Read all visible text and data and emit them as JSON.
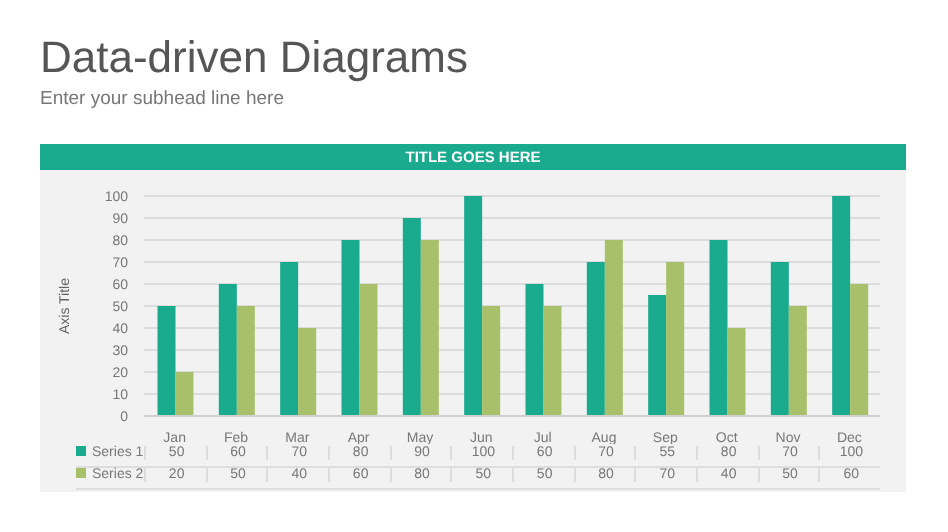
{
  "chart_data": {
    "type": "bar",
    "title": "Data-driven Diagrams",
    "subtitle": "Enter your subhead line here",
    "annotations": [
      "TITLE GOES HERE"
    ],
    "ylabel": "Axis Title",
    "categories": [
      "Jan",
      "Feb",
      "Mar",
      "Apr",
      "May",
      "Jun",
      "Jul",
      "Aug",
      "Sep",
      "Oct",
      "Nov",
      "Dec"
    ],
    "series": [
      {
        "name": "Series 1",
        "color": "#1aaa8e",
        "values": [
          50,
          60,
          70,
          80,
          90,
          100,
          60,
          70,
          55,
          80,
          70,
          100
        ]
      },
      {
        "name": "Series 2",
        "color": "#a8c06a",
        "values": [
          20,
          50,
          40,
          60,
          80,
          50,
          50,
          80,
          70,
          40,
          50,
          60
        ]
      }
    ],
    "ylim": [
      0,
      100
    ],
    "yticks": [
      0,
      10,
      20,
      30,
      40,
      50,
      60,
      70,
      80,
      90,
      100
    ],
    "grid": "y",
    "legend": "bottom",
    "data_labels": true
  }
}
